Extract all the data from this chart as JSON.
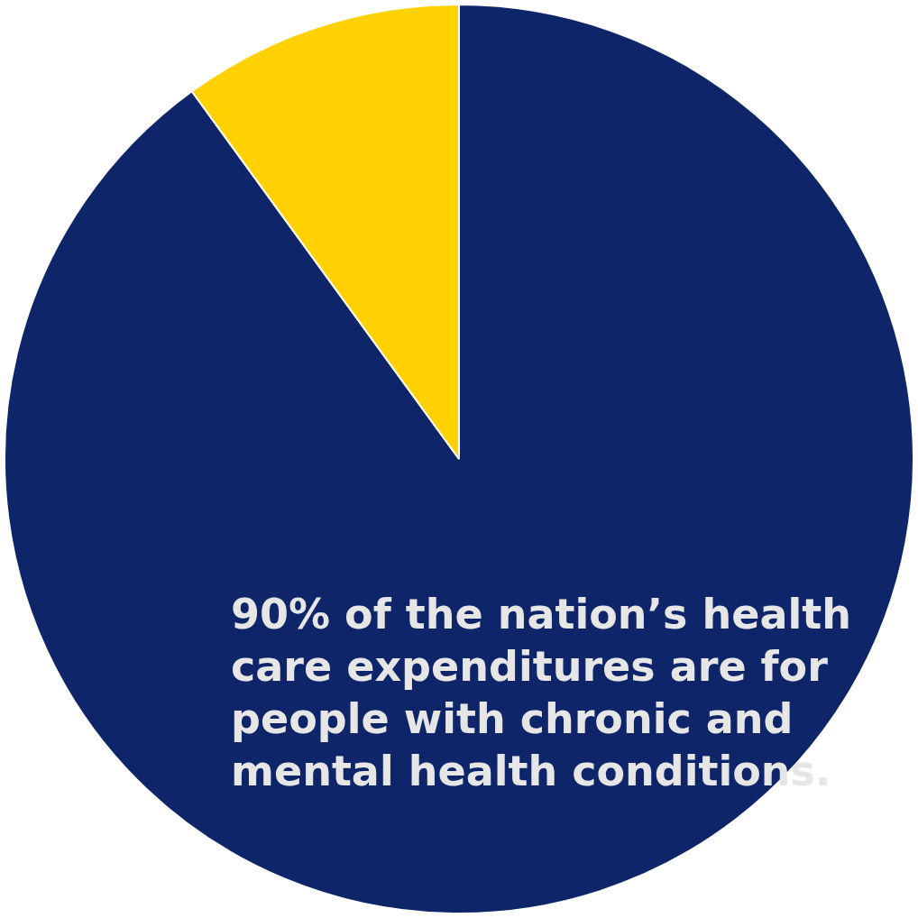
{
  "chart_data": {
    "type": "pie",
    "categories": [
      null,
      null
    ],
    "values": [
      90,
      10
    ],
    "colors": [
      "#0e2669",
      "#ffd100"
    ],
    "annotations": [
      "90% of the nation’s health care expenditures are for people with chronic and mental health conditions."
    ]
  }
}
